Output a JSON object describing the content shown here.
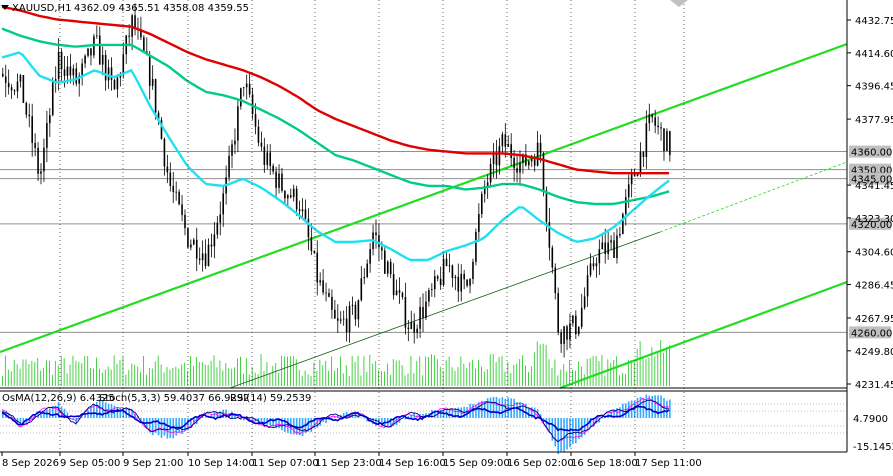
{
  "header": {
    "symbol": "XAUUSD,H1",
    "ohlc": "4362.09 4365.51 4358.08 4359.55"
  },
  "indicator_header": {
    "osma": "OsMA(12,26,9) 6.4325",
    "stoch": "Stoch(5,3,3) 59.4037 66.9292",
    "rsi": "RSI(14) 59.2539"
  },
  "colors": {
    "ema_slow": "#e00000",
    "ema_mid": "#00cc88",
    "ema_fast": "#20e0f0",
    "channel": "#22dd22",
    "volume": "#33cc33",
    "osma": "#33aaff",
    "stoch_main": "#000080",
    "stoch_signal": "#ff00ff",
    "rsi": "#0000cc",
    "level_tag": "#c0c0c0"
  },
  "chart_data": [
    {
      "type": "candlestick",
      "ylim": [
        4231.45,
        4440.0
      ],
      "y_ticks": [
        "4432.75",
        "4414.60",
        "4396.45",
        "4377.95",
        "4341.45",
        "4323.30",
        "4304.60",
        "4286.45",
        "4267.95",
        "4249.80",
        "4231.45"
      ],
      "y_tick_values": [
        4432.75,
        4414.6,
        4396.45,
        4377.95,
        4341.45,
        4323.3,
        4304.6,
        4286.45,
        4267.95,
        4249.8,
        4231.45
      ],
      "x_ticks": [
        "8 Sep 2026",
        "9 Sep 05:00",
        "9 Sep 21:00",
        "10 Sep 14:00",
        "11 Sep 07:00",
        "11 Sep 23:00",
        "14 Sep 16:00",
        "15 Sep 09:00",
        "16 Sep 02:00",
        "16 Sep 18:00",
        "17 Sep 11:00"
      ],
      "levels": [
        {
          "label": "4360.00",
          "value": 4360.0
        },
        {
          "label": "4350.00",
          "value": 4350.0
        },
        {
          "label": "4345.00",
          "value": 4345.0
        },
        {
          "label": "4320.00",
          "value": 4320.0
        },
        {
          "label": "4260.00",
          "value": 4260.0
        }
      ],
      "waypoints_close": [
        4403,
        4395,
        4345,
        4412,
        4398,
        4420,
        4392,
        4432,
        4400,
        4342,
        4312,
        4303,
        4338,
        4400,
        4358,
        4341,
        4332,
        4289,
        4263,
        4270,
        4316,
        4288,
        4262,
        4278,
        4298,
        4283,
        4340,
        4365,
        4352,
        4362,
        4260,
        4264,
        4303,
        4308,
        4345,
        4378,
        4362
      ],
      "ema_fast": [
        4412,
        4415,
        4402,
        4398,
        4400,
        4405,
        4401,
        4405,
        4385,
        4368,
        4352,
        4342,
        4341,
        4345,
        4340,
        4333,
        4325,
        4316,
        4310,
        4310,
        4311,
        4306,
        4300,
        4300,
        4305,
        4308,
        4312,
        4322,
        4330,
        4322,
        4315,
        4310,
        4312,
        4318,
        4327,
        4336,
        4344
      ],
      "ema_mid": [
        4428,
        4424,
        4421,
        4419,
        4418,
        4419,
        4419,
        4419,
        4413,
        4407,
        4399,
        4393,
        4391,
        4388,
        4383,
        4378,
        4372,
        4365,
        4358,
        4355,
        4351,
        4347,
        4343,
        4341,
        4341,
        4339,
        4340,
        4342,
        4342,
        4339,
        4335,
        4332,
        4331,
        4331,
        4333,
        4335,
        4338
      ],
      "ema_slow": [
        4440,
        4438,
        4435,
        4433,
        4432,
        4431,
        4430,
        4429,
        4425,
        4420,
        4415,
        4411,
        4408,
        4405,
        4401,
        4396,
        4390,
        4383,
        4378,
        4374,
        4370,
        4366,
        4363,
        4361,
        4360,
        4359,
        4359,
        4359,
        4358,
        4356,
        4353,
        4350,
        4349,
        4348,
        4348,
        4348,
        4348
      ]
    },
    {
      "type": "indicator",
      "ylim": [
        -15.1452,
        20.0
      ],
      "y_ticks": [
        "4.7900",
        "-15.1452"
      ],
      "y_tick_values": [
        4.79,
        -15.1452
      ],
      "osma_waypoints": [
        3,
        -3,
        2,
        5,
        -2,
        6,
        4,
        3,
        -5,
        -7,
        -4,
        1,
        3,
        -1,
        -2,
        -4,
        -6,
        -3,
        1,
        2,
        -2,
        -3,
        1,
        2,
        3,
        4,
        6,
        7,
        5,
        2,
        -12,
        -8,
        -2,
        3,
        6,
        8,
        6
      ]
    }
  ]
}
